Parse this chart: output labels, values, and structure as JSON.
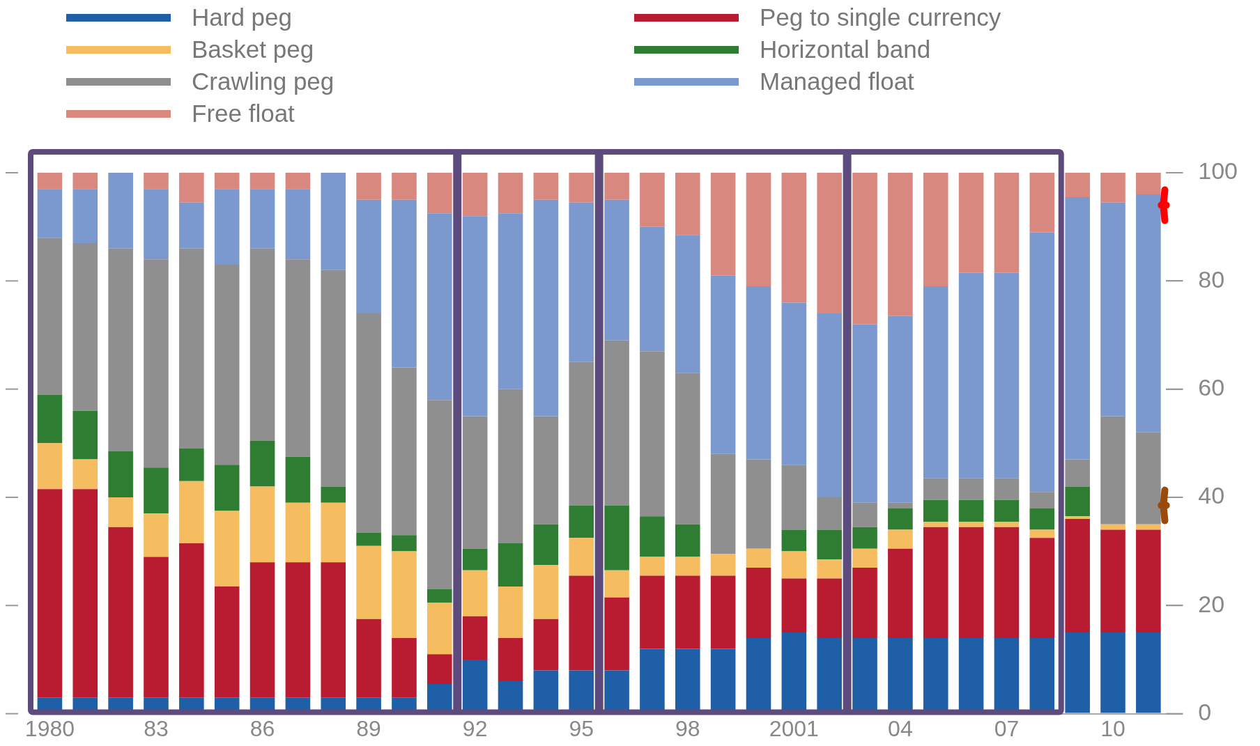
{
  "chart_data": {
    "type": "bar",
    "stacked": true,
    "legend": "top",
    "grid": false,
    "categories": [
      "1980",
      null,
      null,
      "83",
      null,
      null,
      "86",
      null,
      null,
      "89",
      null,
      null,
      "92",
      null,
      null,
      "95",
      null,
      null,
      "98",
      null,
      null,
      "2001",
      null,
      null,
      "04",
      null,
      null,
      "07",
      null,
      null,
      "10",
      null
    ],
    "ylim": [
      0,
      100
    ],
    "yticks": [
      0,
      20,
      40,
      60,
      80,
      100
    ],
    "series": [
      {
        "name": "Hard peg",
        "color": "#1f5fa8",
        "values": [
          3,
          3,
          3,
          3,
          3,
          3,
          3,
          3,
          3,
          3,
          3,
          5.5,
          10,
          6,
          8,
          8,
          8,
          12,
          12,
          12,
          14,
          15,
          14,
          14,
          14,
          14,
          14,
          14,
          14,
          15,
          15,
          15
        ]
      },
      {
        "name": "Peg to single currency",
        "color": "#b91c30",
        "values": [
          38.5,
          38.5,
          31.5,
          26,
          28.5,
          20.5,
          25,
          25,
          25,
          14.5,
          11,
          5.5,
          8,
          8,
          9.5,
          17.5,
          13.5,
          13.5,
          13.5,
          13.5,
          13,
          10,
          11,
          13,
          16.5,
          20.5,
          20.5,
          20.5,
          18.5,
          21,
          19,
          19
        ]
      },
      {
        "name": "Basket peg",
        "color": "#f5bd60",
        "values": [
          8.5,
          5.5,
          5.5,
          8,
          11.5,
          14,
          14,
          11,
          11,
          13.5,
          16,
          9.5,
          8.5,
          9.5,
          10,
          7,
          5,
          3.5,
          3.5,
          4,
          3.5,
          5,
          3.5,
          3.5,
          3.5,
          1,
          1,
          1,
          1.5,
          0.5,
          1,
          1
        ]
      },
      {
        "name": "Horizontal band",
        "color": "#2e7d32",
        "values": [
          9,
          9,
          8.5,
          8.5,
          6,
          8.5,
          8.5,
          8.5,
          3,
          2.5,
          3,
          2.5,
          4,
          8,
          7.5,
          6,
          12,
          7.5,
          6,
          0,
          0,
          4,
          5.5,
          4,
          4,
          4,
          4,
          4,
          4,
          5.5,
          0,
          0
        ]
      },
      {
        "name": "Crawling peg",
        "color": "#8f8f8f",
        "values": [
          29,
          31,
          37.5,
          38.5,
          37,
          37,
          35.5,
          36.5,
          40,
          40.5,
          31,
          35,
          24.5,
          28.5,
          20,
          26.5,
          30.5,
          30.5,
          28,
          18.5,
          16.5,
          12,
          6,
          4.5,
          1,
          4,
          4,
          4,
          3,
          5,
          20,
          17
        ]
      },
      {
        "name": "Managed float",
        "color": "#7b98cf",
        "values": [
          9,
          10,
          14,
          13,
          8.5,
          14,
          11,
          13,
          18,
          21,
          31,
          34.5,
          37,
          32.5,
          40,
          29.5,
          26,
          23,
          25.5,
          33,
          32,
          30,
          34,
          33,
          34.5,
          35.5,
          38,
          38,
          48,
          48.5,
          39.5,
          44
        ]
      },
      {
        "name": "Free float",
        "color": "#d98880",
        "values": [
          3,
          3,
          0,
          3,
          5.5,
          3,
          3,
          3,
          0,
          5,
          5,
          7.5,
          8,
          7.5,
          5,
          5.5,
          5,
          10,
          11.5,
          19,
          21,
          24,
          26,
          28,
          26.5,
          21,
          18.5,
          18.5,
          11,
          4.5,
          5.5,
          4
        ]
      }
    ]
  }
}
